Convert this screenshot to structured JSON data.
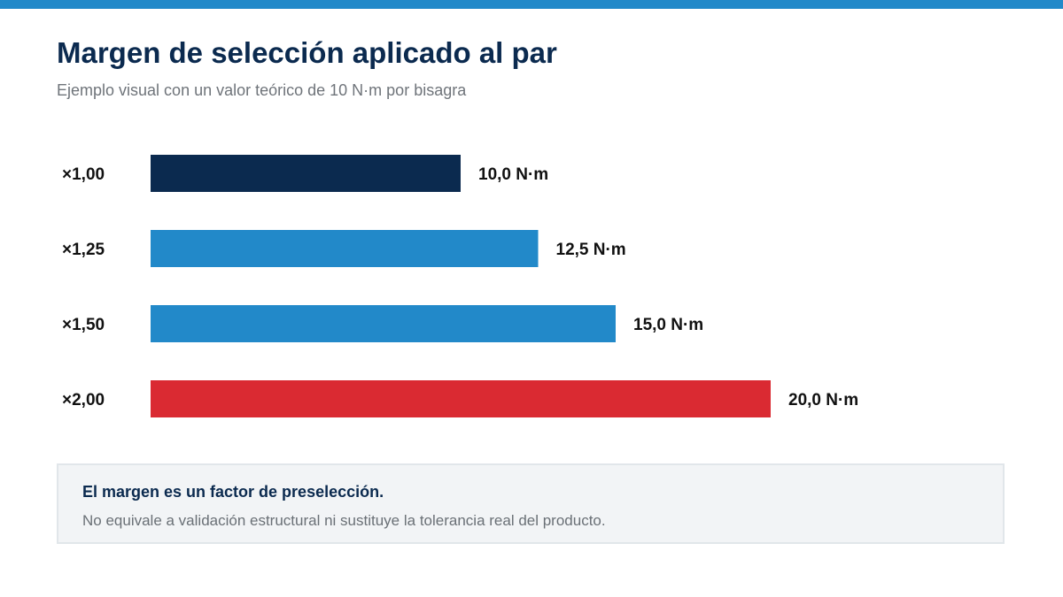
{
  "header": {
    "title": "Margen de selección aplicado al par",
    "subtitle": "Ejemplo visual con un valor teórico de 10 N·m por bisagra"
  },
  "colors": {
    "accent": "#2289c9",
    "title": "#0b2a4f",
    "subtitle": "#6f747a",
    "label": "#111111",
    "note_bg": "#f2f4f6",
    "note_border": "#e1e6ea",
    "note_text": "#6a7076"
  },
  "chart_data": {
    "type": "bar",
    "orientation": "horizontal",
    "categories": [
      "×1,00",
      "×1,25",
      "×1,50",
      "×2,00"
    ],
    "values": [
      10.0,
      12.5,
      15.0,
      20.0
    ],
    "value_labels": [
      "10,0 N·m",
      "12,5 N·m",
      "15,0 N·m",
      "20,0 N·m"
    ],
    "bar_colors": [
      "#0b2a4f",
      "#2289c9",
      "#2289c9",
      "#da2a32"
    ],
    "xlim": [
      0,
      20
    ],
    "grid": false,
    "axes_visible": false
  },
  "note": {
    "heading": "El margen es un factor de preselección.",
    "body": "No equivale a validación estructural ni sustituye la tolerancia real del producto."
  }
}
